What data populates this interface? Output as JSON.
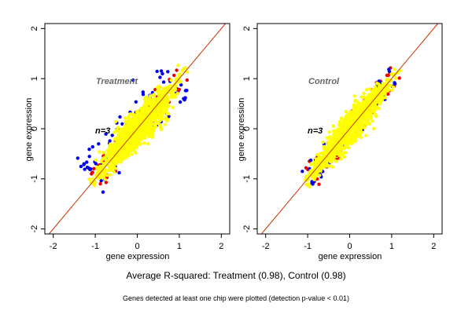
{
  "figure": {
    "caption": "Average R-squared: Treatment (0.98), Control (0.98)",
    "footnote": "Genes detected at least one chip were plotted (detection p-value < 0.01)"
  },
  "colors": {
    "identity_line": "#cc3300",
    "fit_line": "#cc9900",
    "bulk": "#ffff00",
    "outlier_a": "#0000ee",
    "outlier_b": "#ee0000"
  },
  "chart_data": [
    {
      "type": "scatter",
      "panel_label": "Treatment",
      "n_label": "n=3",
      "xlabel": "gene expression",
      "ylabel": "gene expression",
      "xlim": [
        -2.2,
        2.2
      ],
      "ylim": [
        -2.1,
        2.1
      ],
      "xticks": [
        -2,
        -1,
        0,
        1,
        2
      ],
      "yticks": [
        -2,
        -1,
        0,
        1,
        2
      ],
      "r_squared": 0.98,
      "reference_line": {
        "slope": 1,
        "intercept": 0
      },
      "series": [
        {
          "color": "#ffff00",
          "shape": "elongated cloud along diagonal",
          "x_range": [
            -1.1,
            1.2
          ],
          "spread": 0.18
        },
        {
          "color": "#0000ee",
          "shape": "scatter mostly above diagonal",
          "x_range": [
            -1.1,
            1.0
          ]
        },
        {
          "color": "#ee0000",
          "shape": "scatter near diagonal edges",
          "x_range": [
            -1.0,
            1.1
          ]
        }
      ]
    },
    {
      "type": "scatter",
      "panel_label": "Control",
      "n_label": "n=3",
      "xlabel": "gene expression",
      "ylabel": "gene expression",
      "xlim": [
        -2.2,
        2.2
      ],
      "ylim": [
        -2.1,
        2.1
      ],
      "xticks": [
        -2,
        -1,
        0,
        1,
        2
      ],
      "yticks": [
        -2,
        -1,
        0,
        1,
        2
      ],
      "r_squared": 0.98,
      "reference_line": {
        "slope": 1,
        "intercept": 0
      },
      "series": [
        {
          "color": "#ffff00",
          "shape": "elongated cloud along diagonal",
          "x_range": [
            -1.1,
            1.2
          ],
          "spread": 0.16
        },
        {
          "color": "#ee0000",
          "shape": "scatter near diagonal edges",
          "x_range": [
            -1.0,
            1.1
          ]
        },
        {
          "color": "#0000ee",
          "shape": "few points along edges",
          "x_range": [
            -1.0,
            1.1
          ]
        }
      ]
    }
  ]
}
